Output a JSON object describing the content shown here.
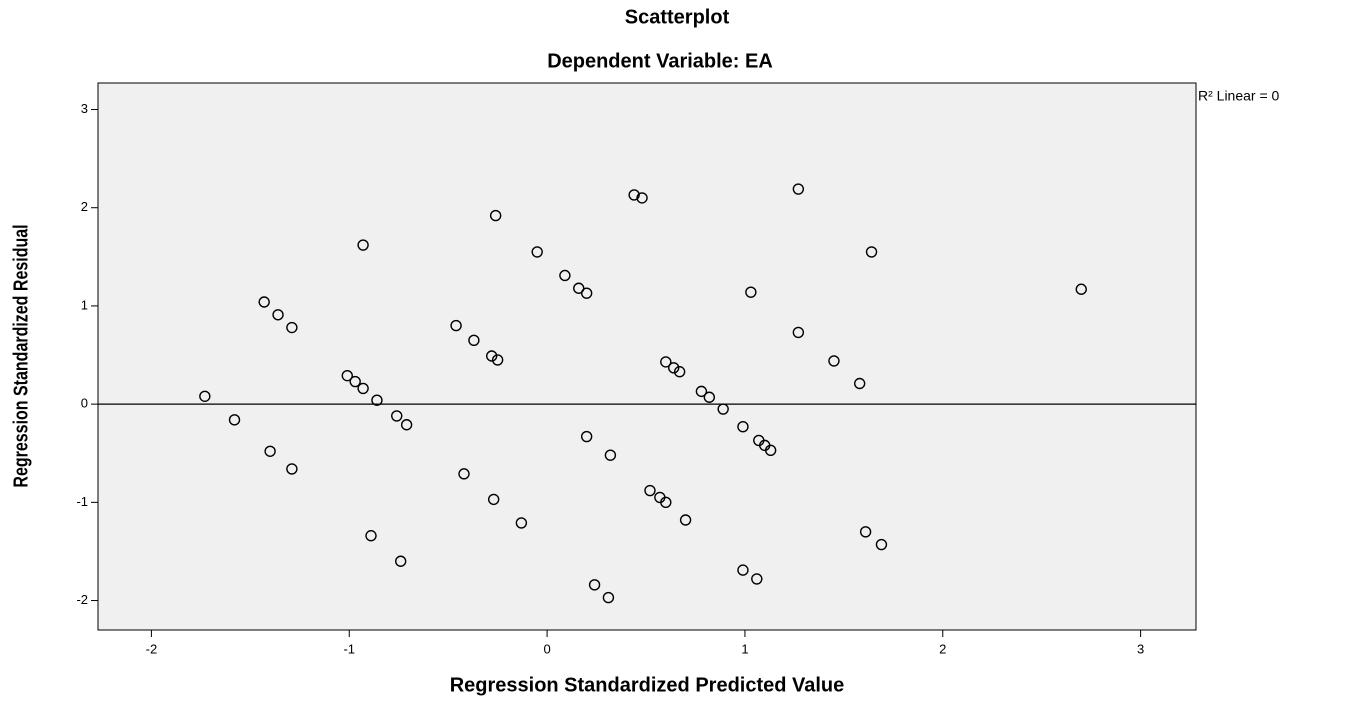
{
  "chart_data": {
    "type": "scatter",
    "title": "Scatterplot",
    "subtitle": "Dependent Variable: EA",
    "x_label": "Regression Standardized Predicted Value",
    "y_label": "Regression Standardized Residual",
    "annotation": "R² Linear = 0",
    "reference_line": 0,
    "color": "#000000",
    "background": "#f0f0f0",
    "xlim": [
      -2.27,
      3.28
    ],
    "ylim": [
      -2.3,
      3.27
    ],
    "xticks": [
      -2,
      -1,
      0,
      1,
      2,
      3
    ],
    "yticks": [
      -2,
      -1,
      0,
      1,
      2,
      3
    ],
    "x": [
      -1.73,
      -1.58,
      -1.43,
      -1.36,
      -1.29,
      -1.4,
      -1.29,
      -1.01,
      -0.97,
      -0.93,
      -0.86,
      -0.93,
      -0.76,
      -0.71,
      -0.89,
      -0.74,
      -0.46,
      -0.37,
      -0.28,
      -0.25,
      -0.26,
      -0.42,
      -0.27,
      -0.13,
      -0.05,
      0.09,
      0.16,
      0.2,
      0.2,
      0.32,
      0.24,
      0.31,
      0.44,
      0.48,
      0.52,
      0.57,
      0.6,
      0.6,
      0.64,
      0.67,
      0.7,
      0.78,
      0.82,
      0.89,
      0.99,
      1.07,
      1.1,
      1.13,
      1.03,
      0.99,
      1.06,
      1.27,
      1.27,
      1.45,
      1.58,
      1.64,
      1.61,
      1.69,
      2.7
    ],
    "y": [
      0.08,
      -0.16,
      1.04,
      0.91,
      0.78,
      -0.48,
      -0.66,
      0.29,
      0.23,
      0.16,
      0.04,
      1.62,
      -0.12,
      -0.21,
      -1.34,
      -1.6,
      0.8,
      0.65,
      0.49,
      0.45,
      1.92,
      -0.71,
      -0.97,
      -1.21,
      1.55,
      1.31,
      1.18,
      1.13,
      -0.33,
      -0.52,
      -1.84,
      -1.97,
      2.13,
      2.1,
      -0.88,
      -0.95,
      -1.0,
      0.43,
      0.37,
      0.33,
      -1.18,
      0.13,
      0.07,
      -0.05,
      -0.23,
      -0.37,
      -0.42,
      -0.47,
      1.14,
      -1.69,
      -1.78,
      2.19,
      0.73,
      0.44,
      0.21,
      1.55,
      -1.3,
      -1.43,
      1.17
    ]
  }
}
